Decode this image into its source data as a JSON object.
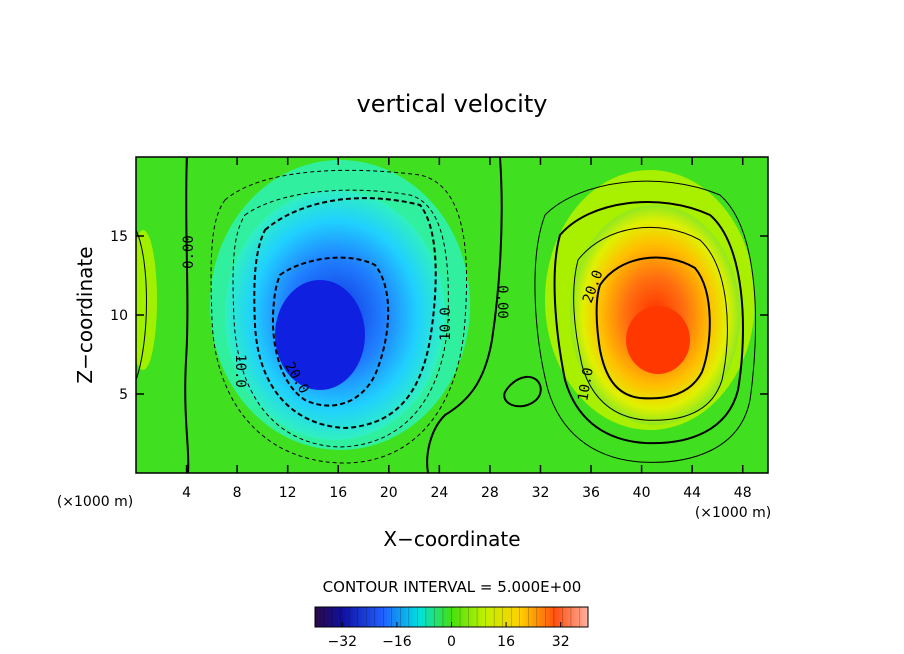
{
  "chart_data": {
    "type": "heatmap",
    "title": "vertical velocity",
    "xlabel": "X−coordinate",
    "ylabel": "Z−coordinate",
    "x_unit_label": "(×1000 m)",
    "y_unit_label": "(×1000 m)",
    "xlim": [
      0,
      50
    ],
    "ylim": [
      0,
      20
    ],
    "x_ticks": [
      "4",
      "8",
      "12",
      "16",
      "20",
      "24",
      "28",
      "32",
      "36",
      "40",
      "44",
      "48"
    ],
    "y_ticks": [
      "5",
      "10",
      "15"
    ],
    "contour_interval_text": "CONTOUR INTERVAL = 5.000E+00",
    "colorbar_ticks": [
      "−32",
      "−16",
      "0",
      "16",
      "32"
    ],
    "colorbar_range": [
      -40,
      40
    ],
    "contour_labels": [
      "0.00",
      "10.0",
      "20.0",
      "0.00",
      "10.0",
      "20.0",
      "10.0"
    ],
    "features": [
      {
        "name": "downdraft core",
        "x": 16,
        "z": 9,
        "value": -34
      },
      {
        "name": "updraft core",
        "x": 41.5,
        "z": 8,
        "value": 34
      }
    ],
    "grid": false
  }
}
